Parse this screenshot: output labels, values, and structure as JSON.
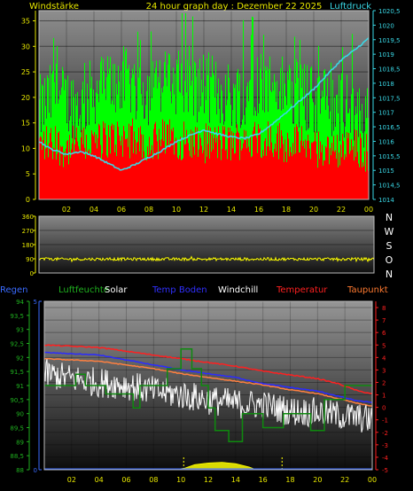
{
  "header": {
    "left_label": "Windstärke",
    "title": "24 hour graph day : Dezember 22 2025",
    "right_label": "Luftdruck"
  },
  "legend": [
    {
      "label": "Regen",
      "color": "#3a6bff"
    },
    {
      "label": "Luftfeuchte",
      "color": "#1fb11f"
    },
    {
      "label": "Solar",
      "color": "#ffffff"
    },
    {
      "label": "Temp Boden",
      "color": "#3030ff"
    },
    {
      "label": "Windchill",
      "color": "#ffffff"
    },
    {
      "label": "Temperatur",
      "color": "#ff2020"
    },
    {
      "label": "Taupunkt",
      "color": "#ff7a30"
    }
  ],
  "colors": {
    "wind_gust": "#00ff00",
    "wind_speed": "#ff0000",
    "pressure": "#3ad8e6",
    "wind_dir": "#ffff00",
    "humidity": "#0e8a0e",
    "temperature": "#ff2020",
    "soil_temp": "#2b2bff",
    "dewpoint": "#ff8040",
    "windchill": "#ffffff",
    "solar": "#ffff00",
    "axis_yellow": "#e8e800",
    "axis_cyan": "#3ad8e6",
    "axis_green": "#1fb11f",
    "axis_blue": "#3a6bff",
    "axis_red": "#ff2020"
  },
  "chart_data": [
    {
      "id": "wind",
      "type": "bar",
      "title": "24 hour graph day : Dezember 22 2025",
      "x_ticks": [
        "02",
        "04",
        "06",
        "08",
        "10",
        "12",
        "14",
        "16",
        "18",
        "20",
        "22",
        "00"
      ],
      "left_axis": {
        "label": "Windstärke",
        "ticks": [
          0,
          5,
          10,
          15,
          20,
          25,
          30,
          35
        ],
        "range": [
          0,
          37
        ]
      },
      "right_axis": {
        "label": "Luftdruck",
        "ticks": [
          "1014",
          "1014,5",
          "1015",
          "1015,5",
          "1016",
          "1016,5",
          "1017",
          "1017,5",
          "1018",
          "1018,5",
          "1019",
          "1019,5",
          "1020",
          "1020,5"
        ],
        "range": [
          1014,
          1020.5
        ]
      },
      "series": [
        {
          "name": "gust",
          "unit_axis": "left",
          "values_by_hour": [
            18,
            21,
            20,
            19,
            22,
            23,
            24,
            23,
            22,
            23,
            24,
            22,
            23,
            22,
            21,
            22,
            24,
            23,
            22,
            21,
            20,
            20,
            19,
            18,
            16
          ]
        },
        {
          "name": "speed",
          "unit_axis": "left",
          "values_by_hour": [
            11,
            11,
            10,
            11,
            11,
            12,
            12,
            12,
            11,
            12,
            12,
            11,
            11,
            11,
            11,
            12,
            12,
            12,
            11,
            11,
            10,
            10,
            10,
            10,
            9
          ]
        },
        {
          "name": "pressure",
          "unit_axis": "right",
          "points": [
            [
              0,
              1016.0
            ],
            [
              0.8,
              1015.75
            ],
            [
              2,
              1015.55
            ],
            [
              3,
              1015.65
            ],
            [
              4,
              1015.5
            ],
            [
              5,
              1015.25
            ],
            [
              6,
              1015.0
            ],
            [
              7,
              1015.2
            ],
            [
              8,
              1015.45
            ],
            [
              9,
              1015.7
            ],
            [
              10,
              1016.0
            ],
            [
              11,
              1016.2
            ],
            [
              12,
              1016.4
            ],
            [
              13,
              1016.25
            ],
            [
              14,
              1016.15
            ],
            [
              15,
              1016.1
            ],
            [
              16,
              1016.25
            ],
            [
              17,
              1016.6
            ],
            [
              18,
              1017.0
            ],
            [
              19,
              1017.4
            ],
            [
              20,
              1017.8
            ],
            [
              21,
              1018.3
            ],
            [
              22,
              1018.8
            ],
            [
              23,
              1019.15
            ],
            [
              24,
              1019.55
            ]
          ]
        }
      ]
    },
    {
      "id": "direction",
      "type": "line",
      "right_labels": [
        "N",
        "W",
        "S",
        "O",
        "N"
      ],
      "left_axis": {
        "ticks": [
          0,
          90,
          180,
          270,
          360
        ],
        "range": [
          0,
          360
        ]
      },
      "series": [
        {
          "name": "direction",
          "mean": 88,
          "noise": 9
        }
      ]
    },
    {
      "id": "weather",
      "type": "line",
      "x_ticks": [
        "02",
        "04",
        "06",
        "08",
        "10",
        "12",
        "14",
        "16",
        "18",
        "20",
        "22",
        "00"
      ],
      "left_axis_rain": {
        "ticks": [
          0,
          5
        ],
        "range": [
          0,
          5
        ]
      },
      "left_axis_humidity": {
        "ticks": [
          "88",
          "88,5",
          "89",
          "89,5",
          "90",
          "90,5",
          "91",
          "91,5",
          "92",
          "92,5",
          "93",
          "93,5",
          "94"
        ],
        "range": [
          88,
          94
        ]
      },
      "right_axis_temp": {
        "ticks": [
          -5,
          -4,
          -3,
          -2,
          -1,
          0,
          1,
          2,
          3,
          4,
          5,
          6,
          7,
          8
        ],
        "range": [
          -5,
          8.5
        ]
      },
      "series": [
        {
          "name": "Temperatur",
          "unit_axis": "temp",
          "points": [
            [
              0,
              5.0
            ],
            [
              2,
              4.9
            ],
            [
              4,
              4.8
            ],
            [
              6,
              4.5
            ],
            [
              8,
              4.2
            ],
            [
              10,
              3.9
            ],
            [
              12,
              3.6
            ],
            [
              14,
              3.3
            ],
            [
              16,
              2.9
            ],
            [
              18,
              2.6
            ],
            [
              20,
              2.3
            ],
            [
              21.5,
              1.9
            ],
            [
              23,
              1.3
            ],
            [
              24,
              1.1
            ]
          ]
        },
        {
          "name": "Temp Boden",
          "unit_axis": "temp",
          "points": [
            [
              0,
              4.4
            ],
            [
              2,
              4.3
            ],
            [
              4,
              4.2
            ],
            [
              6,
              3.8
            ],
            [
              8,
              3.4
            ],
            [
              10,
              3.0
            ],
            [
              12,
              2.7
            ],
            [
              14,
              2.4
            ],
            [
              16,
              1.9
            ],
            [
              18,
              1.6
            ],
            [
              20,
              1.3
            ],
            [
              21.5,
              0.9
            ],
            [
              23,
              0.5
            ],
            [
              24,
              0.4
            ]
          ]
        },
        {
          "name": "Taupunkt",
          "unit_axis": "temp",
          "points": [
            [
              0,
              3.9
            ],
            [
              2,
              3.8
            ],
            [
              4,
              3.7
            ],
            [
              6,
              3.4
            ],
            [
              8,
              3.1
            ],
            [
              10,
              2.7
            ],
            [
              12,
              2.4
            ],
            [
              14,
              2.1
            ],
            [
              16,
              1.8
            ],
            [
              18,
              1.4
            ],
            [
              20,
              1.1
            ],
            [
              21.5,
              0.7
            ],
            [
              23,
              0.3
            ],
            [
              24,
              0.1
            ]
          ]
        },
        {
          "name": "Windchill",
          "unit_axis": "temp",
          "points": [
            [
              0,
              2.7
            ],
            [
              2,
              2.3
            ],
            [
              4,
              2.0
            ],
            [
              6,
              1.8
            ],
            [
              8,
              1.3
            ],
            [
              10,
              1.0
            ],
            [
              12,
              0.6
            ],
            [
              14,
              0.3
            ],
            [
              16,
              0.2
            ],
            [
              18,
              -0.3
            ],
            [
              20,
              -0.4
            ],
            [
              22,
              -0.7
            ],
            [
              24,
              -1.0
            ]
          ]
        },
        {
          "name": "Luftfeuchte",
          "unit_axis": "humidity",
          "points": [
            [
              0,
              91.0
            ],
            [
              2.3,
              91.0
            ],
            [
              2.3,
              91.4
            ],
            [
              3.0,
              91.4
            ],
            [
              3.0,
              91.0
            ],
            [
              4.5,
              91.0
            ],
            [
              4.5,
              90.7
            ],
            [
              6.5,
              90.7
            ],
            [
              6.5,
              90.2
            ],
            [
              7.0,
              90.2
            ],
            [
              7.0,
              91.0
            ],
            [
              9.0,
              91.0
            ],
            [
              9.0,
              91.6
            ],
            [
              10.0,
              91.6
            ],
            [
              10.0,
              92.3
            ],
            [
              10.8,
              92.3
            ],
            [
              10.8,
              91.6
            ],
            [
              11.5,
              91.6
            ],
            [
              11.5,
              91.0
            ],
            [
              12.0,
              91.0
            ],
            [
              12.0,
              90.2
            ],
            [
              12.5,
              90.2
            ],
            [
              12.5,
              89.4
            ],
            [
              13.5,
              89.4
            ],
            [
              13.5,
              89.0
            ],
            [
              14.5,
              89.0
            ],
            [
              14.5,
              90.0
            ],
            [
              16.0,
              90.0
            ],
            [
              16.0,
              89.5
            ],
            [
              17.5,
              89.5
            ],
            [
              17.5,
              90.0
            ],
            [
              19.5,
              90.0
            ],
            [
              19.5,
              89.4
            ],
            [
              20.5,
              89.4
            ],
            [
              20.5,
              90.5
            ],
            [
              22.0,
              90.5
            ],
            [
              22.0,
              91.0
            ],
            [
              24,
              91.0
            ]
          ]
        },
        {
          "name": "Solar",
          "unit_axis": "rain",
          "points": [
            [
              9.5,
              0
            ],
            [
              10.3,
              0.05
            ],
            [
              11,
              0.15
            ],
            [
              12,
              0.2
            ],
            [
              13,
              0.22
            ],
            [
              14,
              0.18
            ],
            [
              15,
              0.08
            ],
            [
              15.5,
              0
            ]
          ]
        },
        {
          "name": "Regen",
          "unit_axis": "rain",
          "points": [
            [
              0,
              0
            ],
            [
              24,
              0
            ]
          ]
        }
      ]
    }
  ]
}
